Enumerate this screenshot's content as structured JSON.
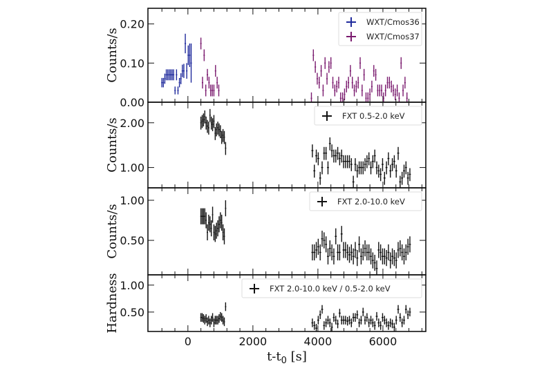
{
  "chart_data": {
    "type": "scatter",
    "xlabel": "t-t",
    "xlabel_sub": "0",
    "xlabel_unit": " [s]",
    "xlim": [
      -1230,
      7320
    ],
    "xticks": [
      0,
      2000,
      4000,
      6000
    ],
    "xtick_labels": [
      "0",
      "2000",
      "4000",
      "6000"
    ],
    "error_bars": true,
    "fxt_time": {
      "seg1": [
        400,
        440,
        480,
        520,
        560,
        600,
        640,
        680,
        720,
        760,
        800,
        840,
        880,
        920,
        960,
        1000,
        1040,
        1080,
        1120,
        1160
      ],
      "seg2": [
        3830,
        3890,
        3950,
        4010,
        4070,
        4130,
        4190,
        4250,
        4310,
        4370,
        4430,
        4490,
        4550,
        4610,
        4670,
        4730,
        4790,
        4850,
        4910,
        4970,
        5030,
        5090,
        5150,
        5210,
        5270,
        5330,
        5390,
        5450,
        5510,
        5570,
        5630,
        5690,
        5750,
        5810,
        5870,
        5930,
        5990,
        6050,
        6110,
        6170,
        6230,
        6290,
        6350,
        6410,
        6470,
        6530,
        6590,
        6650,
        6710,
        6770,
        6830
      ]
    },
    "panels": [
      {
        "ylabel": "Counts/s",
        "scale": "linear",
        "ylim": [
          0,
          0.24
        ],
        "yticks": [
          0.0,
          0.1,
          0.2
        ],
        "ytick_labels": [
          "0.00",
          "0.10",
          "0.20"
        ],
        "legend_position": "top-right",
        "series": [
          {
            "name": "WXT/Cmos36",
            "color": "#1f2a9c",
            "x": [
              -800,
              -755,
              -710,
              -665,
              -620,
              -575,
              -530,
              -485,
              -440,
              -395,
              -350,
              -305,
              -260,
              -215,
              -170,
              -125,
              -80,
              -35,
              10,
              55,
              100
            ],
            "y": [
              0.05,
              0.05,
              0.06,
              0.07,
              0.07,
              0.07,
              0.07,
              0.07,
              0.07,
              0.03,
              0.07,
              0.03,
              0.05,
              0.06,
              0.08,
              0.08,
              0.15,
              0.08,
              0.12,
              0.12,
              0.1
            ],
            "yerr": [
              0.012,
              0.012,
              0.013,
              0.014,
              0.014,
              0.014,
              0.014,
              0.014,
              0.014,
              0.01,
              0.014,
              0.01,
              0.012,
              0.014,
              0.016,
              0.018,
              0.025,
              0.02,
              0.025,
              0.03,
              0.05
            ]
          },
          {
            "name": "WXT/Cmos37",
            "color": "#7a1a6e",
            "x": [
              400,
              450,
              500,
              550,
              600,
              650,
              700,
              750,
              800,
              850,
              900,
              950,
              3800,
              3860,
              3920,
              3980,
              4040,
              4100,
              4160,
              4220,
              4280,
              4340,
              4400,
              4460,
              4520,
              4580,
              4640,
              4700,
              4760,
              4820,
              4880,
              4940,
              5000,
              5060,
              5120,
              5180,
              5240,
              5300,
              5360,
              5420,
              5480,
              5540,
              5600,
              5660,
              5720,
              5780,
              5840,
              5900,
              5960,
              6020,
              6080,
              6140,
              6200,
              6260,
              6320,
              6380,
              6440,
              6500,
              6560,
              6620,
              6680,
              6740
            ],
            "y": [
              0.15,
              0.05,
              0.12,
              0.03,
              0.07,
              0.05,
              0.03,
              0.03,
              0.03,
              0.08,
              0.05,
              0.03,
              0.01,
              0.12,
              0.09,
              0.06,
              0.05,
              0.08,
              0.03,
              0.1,
              0.06,
              0.09,
              0.1,
              0.05,
              0.03,
              0.04,
              0.05,
              0.01,
              0.01,
              0.02,
              0.04,
              0.05,
              0.08,
              0.05,
              0.03,
              0.04,
              0.05,
              0.1,
              0.03,
              0.07,
              0.01,
              0.01,
              0.02,
              0.04,
              0.08,
              0.07,
              0.03,
              0.03,
              0.03,
              0.01,
              0.03,
              0.05,
              0.05,
              0.04,
              0.03,
              0.02,
              0.03,
              0.01,
              0.1,
              0.03,
              0.05,
              0.01
            ],
            "yerr": 0.015
          }
        ]
      },
      {
        "ylabel": "Counts/s",
        "scale": "log",
        "ylim": [
          0.73,
          2.75
        ],
        "yticks": [
          1.0,
          2.0
        ],
        "ytick_labels": [
          "1.00",
          "2.00"
        ],
        "legend_position": "top-right",
        "series": [
          {
            "name": "FXT 0.5-2.0 keV",
            "color": "#111111",
            "y1": [
              2.0,
              2.05,
              2.1,
              2.2,
              2.0,
              1.9,
              1.85,
              2.25,
              2.0,
              1.95,
              2.05,
              1.7,
              1.8,
              1.85,
              1.8,
              1.75,
              1.6,
              1.65,
              1.6,
              1.35
            ],
            "y2": [
              1.3,
              0.95,
              1.2,
              1.15,
              0.85,
              1.0,
              1.25,
              1.25,
              1.0,
              1.45,
              1.3,
              1.2,
              1.2,
              1.25,
              1.15,
              1.2,
              1.1,
              1.1,
              1.1,
              1.1,
              1.05,
              0.8,
              1.05,
              0.95,
              1.0,
              1.0,
              1.0,
              1.05,
              1.1,
              1.15,
              1.0,
              1.1,
              1.2,
              1.0,
              0.95,
              0.9,
              1.05,
              0.85,
              1.0,
              1.15,
              0.95,
              1.05,
              1.1,
              0.95,
              1.25,
              0.8,
              0.85,
              0.95,
              1.0,
              0.85,
              0.9
            ],
            "yerr_frac": 0.1
          }
        ]
      },
      {
        "ylabel": "Counts/s",
        "scale": "linear",
        "ylim": [
          0.07,
          1.155
        ],
        "yticks": [
          0.5,
          1.0
        ],
        "ytick_labels": [
          "0.50",
          "1.00"
        ],
        "legend_position": "top-right",
        "series": [
          {
            "name": "FXT 2.0-10.0 keV",
            "color": "#111111",
            "y1": [
              0.8,
              0.8,
              0.8,
              0.8,
              0.75,
              0.6,
              0.72,
              0.7,
              0.65,
              0.82,
              0.6,
              0.58,
              0.62,
              0.65,
              0.7,
              0.75,
              0.72,
              0.6,
              0.55,
              0.9
            ],
            "y2": [
              0.35,
              0.35,
              0.38,
              0.42,
              0.35,
              0.52,
              0.5,
              0.45,
              0.3,
              0.4,
              0.35,
              0.3,
              0.55,
              0.35,
              0.35,
              0.58,
              0.38,
              0.38,
              0.35,
              0.32,
              0.35,
              0.3,
              0.38,
              0.28,
              0.45,
              0.3,
              0.35,
              0.4,
              0.35,
              0.35,
              0.3,
              0.25,
              0.22,
              0.15,
              0.38,
              0.35,
              0.3,
              0.3,
              0.28,
              0.35,
              0.25,
              0.3,
              0.28,
              0.25,
              0.38,
              0.4,
              0.35,
              0.3,
              0.35,
              0.42,
              0.45
            ],
            "yerr": 0.1
          }
        ]
      },
      {
        "ylabel": "Hardness",
        "scale": "linear",
        "ylim": [
          0.14,
          1.19
        ],
        "yticks": [
          0.5,
          1.0
        ],
        "ytick_labels": [
          "0.50",
          "1.00"
        ],
        "legend_position": "top-right",
        "series": [
          {
            "name": "FXT 2.0-10.0 keV / 0.5-2.0 keV",
            "color": "#111111",
            "y1": [
              0.4,
              0.4,
              0.38,
              0.35,
              0.38,
              0.32,
              0.35,
              0.3,
              0.35,
              0.4,
              0.3,
              0.35,
              0.35,
              0.35,
              0.38,
              0.42,
              0.4,
              0.35,
              0.32,
              0.6
            ],
            "y2": [
              0.3,
              0.25,
              0.2,
              0.35,
              0.45,
              0.55,
              0.25,
              0.3,
              0.35,
              0.3,
              0.22,
              0.4,
              0.35,
              0.28,
              0.48,
              0.35,
              0.35,
              0.35,
              0.33,
              0.35,
              0.3,
              0.4,
              0.4,
              0.45,
              0.3,
              0.35,
              0.5,
              0.35,
              0.4,
              0.3,
              0.35,
              0.3,
              0.25,
              0.42,
              0.3,
              0.25,
              0.4,
              0.35,
              0.3,
              0.25,
              0.3,
              0.28,
              0.22,
              0.35,
              0.55,
              0.4,
              0.3,
              0.35,
              0.55,
              0.45,
              0.5
            ],
            "yerr": 0.08
          }
        ]
      }
    ]
  }
}
